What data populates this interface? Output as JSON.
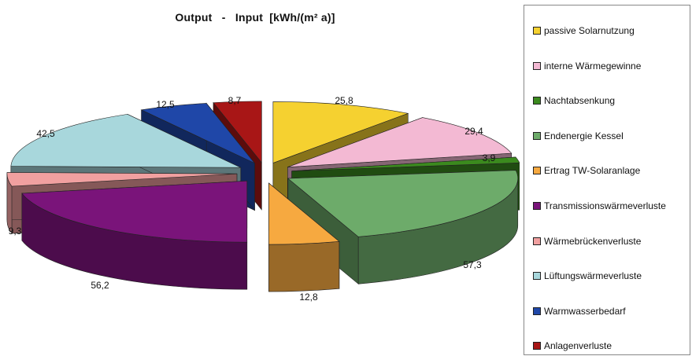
{
  "chart_data": {
    "type": "pie",
    "title": "Output   -   Input  [kWh/(m² a)]",
    "legend_position": "right",
    "three_d": true,
    "exploded": true,
    "groups": [
      {
        "name": "Input",
        "slices": [
          "passive Solarnutzung",
          "interne Wärmegewinne",
          "Nachtabsenkung",
          "Endenergie Kessel",
          "Ertrag TW-Solaranlage"
        ]
      },
      {
        "name": "Output",
        "slices": [
          "Transmissionswärmeverluste",
          "Wärmebrückenverluste",
          "Lüftungswärmeverluste",
          "Warmwasserbedarf",
          "Anlagenverluste"
        ]
      }
    ],
    "slices": [
      {
        "label": "passive Solarnutzung",
        "value": 25.8,
        "value_label": "25,8",
        "color": "#f5d130"
      },
      {
        "label": "interne Wärmegewinne",
        "value": 29.4,
        "value_label": "29,4",
        "color": "#f3b9d3"
      },
      {
        "label": "Nachtabsenkung",
        "value": 3.9,
        "value_label": "3,9",
        "color": "#3b8a1e"
      },
      {
        "label": "Endenergie Kessel",
        "value": 57.3,
        "value_label": "57,3",
        "color": "#6dab6a"
      },
      {
        "label": "Ertrag TW-Solaranlage",
        "value": 12.8,
        "value_label": "12,8",
        "color": "#f6a940"
      },
      {
        "label": "Transmissionswärmeverluste",
        "value": 56.2,
        "value_label": "56,2",
        "color": "#7a147a"
      },
      {
        "label": "Wärmebrückenverluste",
        "value": 9.3,
        "value_label": "9,3",
        "color": "#f1a0a0"
      },
      {
        "label": "Lüftungswärmeverluste",
        "value": 42.5,
        "value_label": "42,5",
        "color": "#a8d7dc"
      },
      {
        "label": "Warmwasserbedarf",
        "value": 12.5,
        "value_label": "12,5",
        "color": "#1f47a8"
      },
      {
        "label": "Anlagenverluste",
        "value": 8.7,
        "value_label": "8,7",
        "color": "#a81616"
      }
    ]
  }
}
